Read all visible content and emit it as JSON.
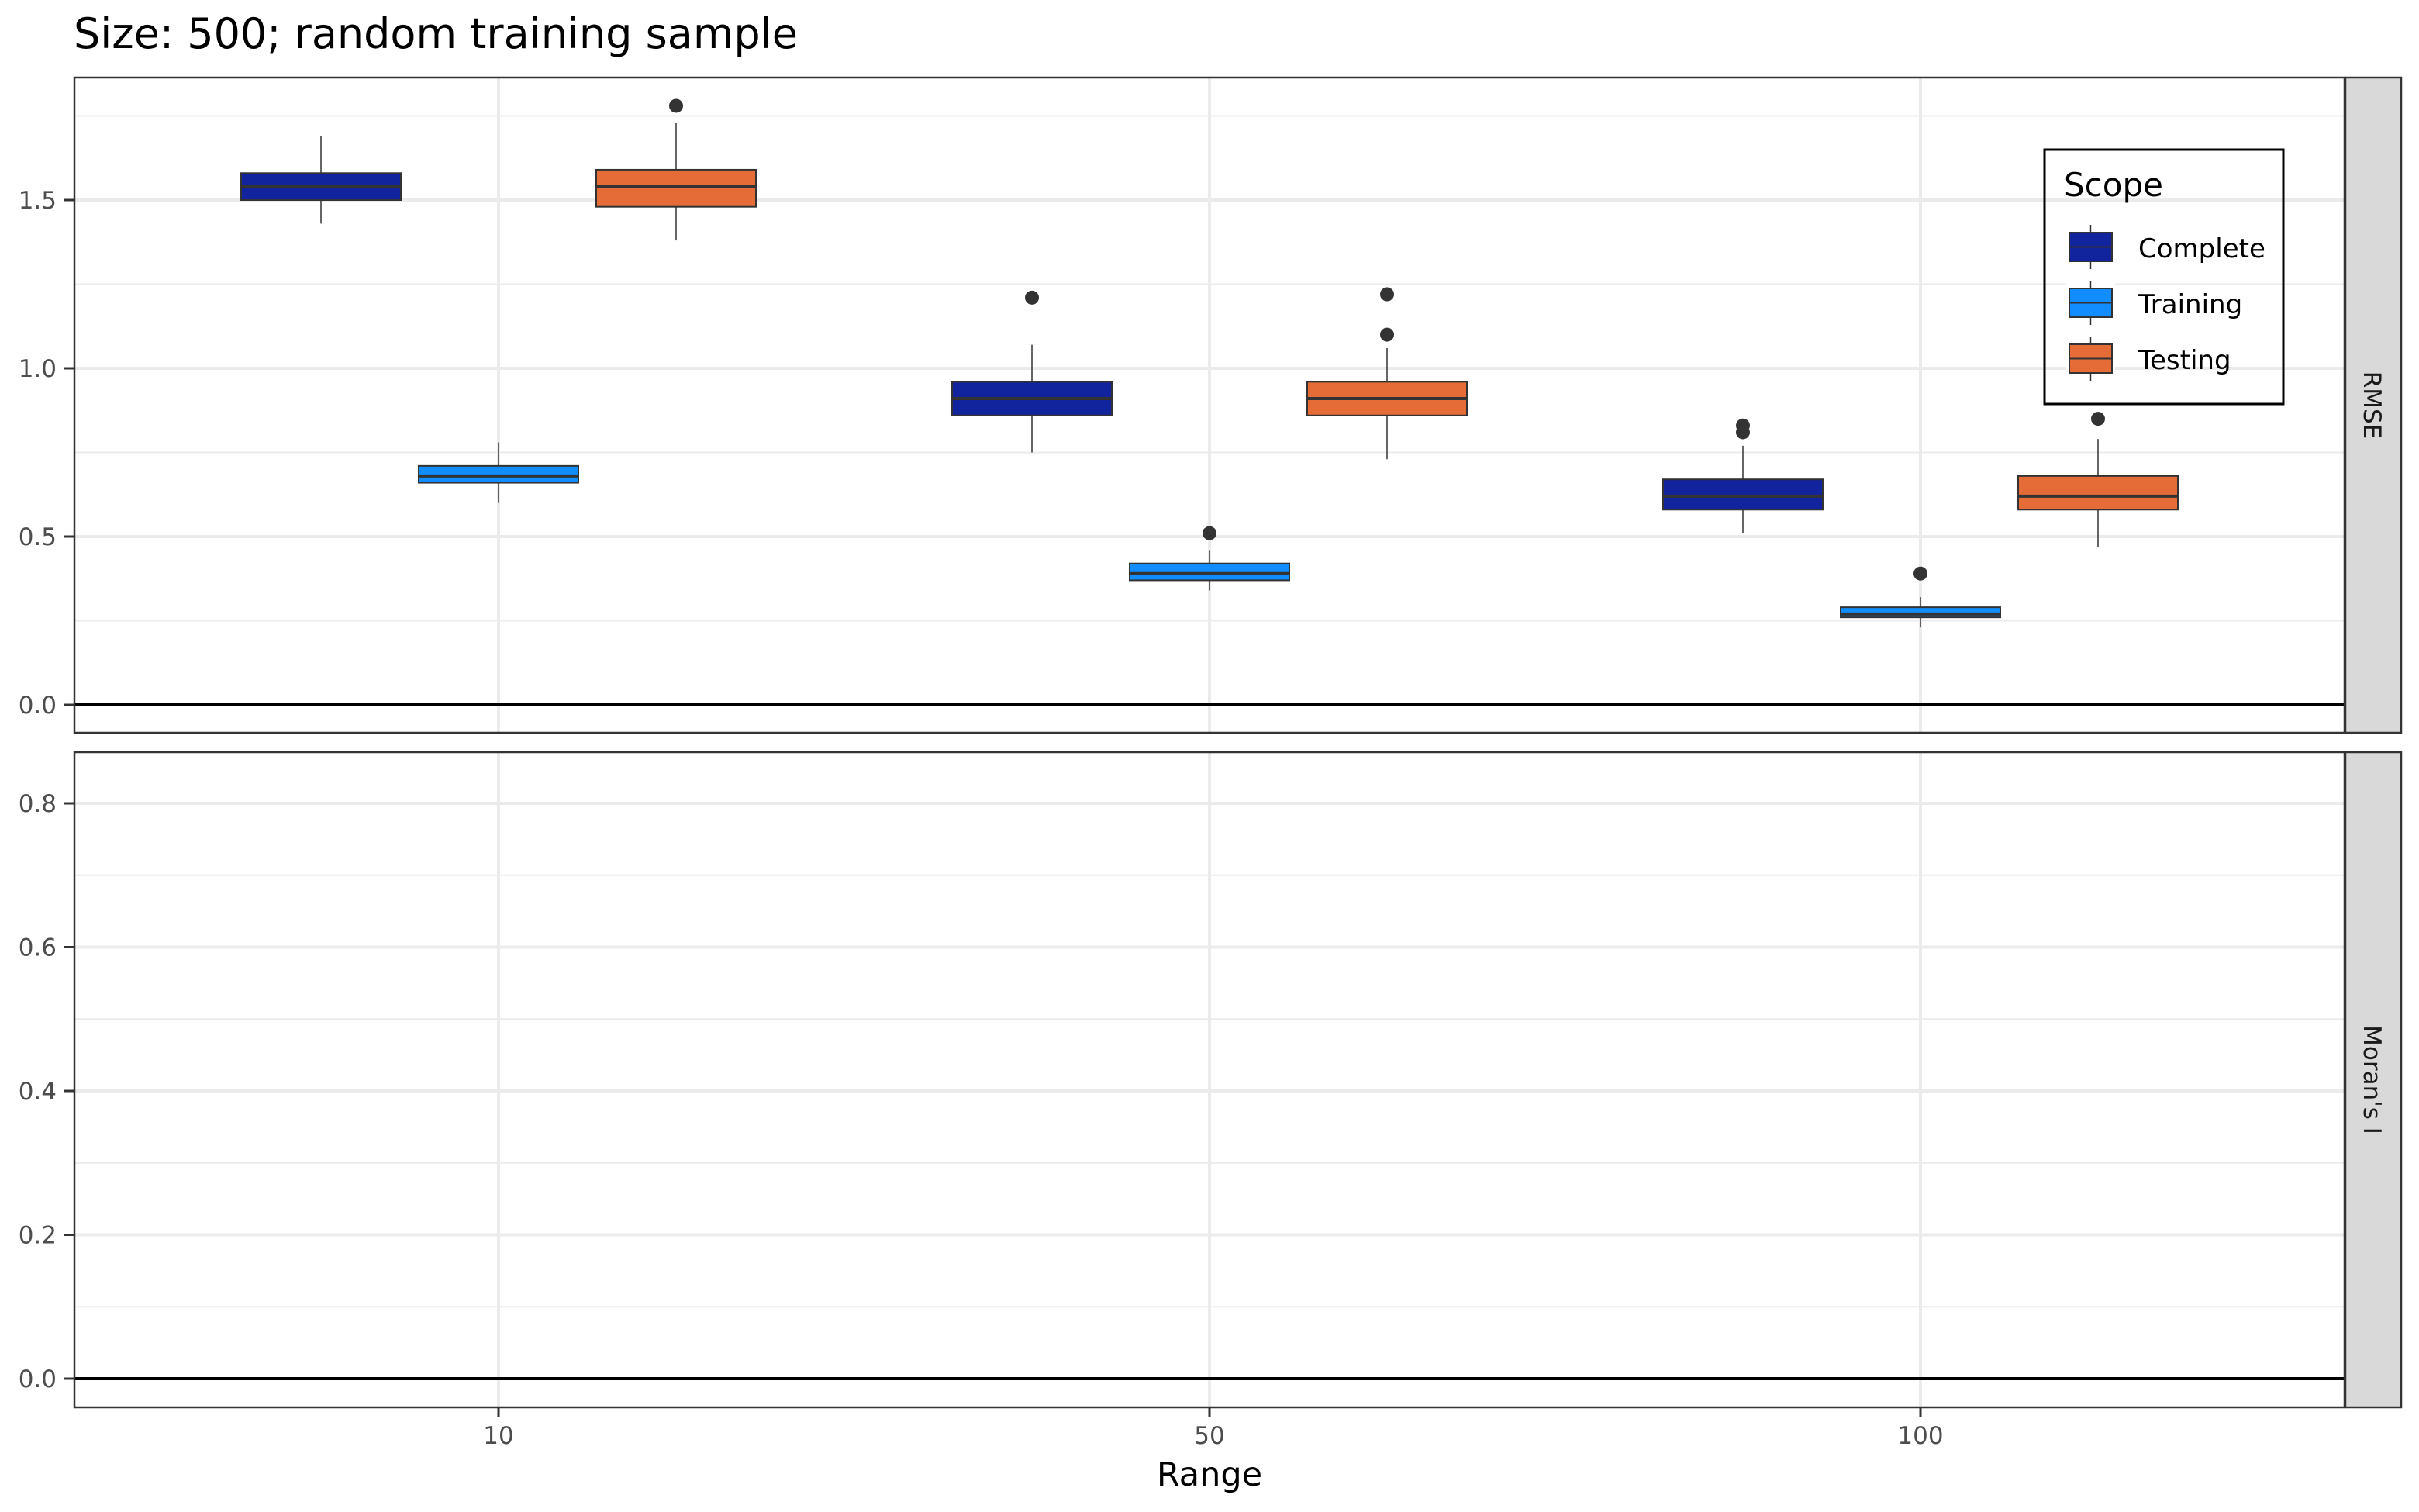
{
  "chart_data": {
    "type": "boxplot",
    "title": "Size: 500; random training sample",
    "xlabel": "Range",
    "categories": [
      "10",
      "50",
      "100"
    ],
    "legend": {
      "title": "Scope",
      "position": "top-right (inside top panel)",
      "entries": [
        {
          "name": "Complete",
          "color": "#12239e"
        },
        {
          "name": "Training",
          "color": "#118dff"
        },
        {
          "name": "Testing",
          "color": "#e66c37"
        }
      ]
    },
    "facets": [
      {
        "strip_label": "RMSE",
        "ylim": [
          -0.04,
          1.84
        ],
        "y_ticks": [
          "0.0",
          "0.5",
          "1.0",
          "1.5"
        ],
        "y_tick_values": [
          0.0,
          0.5,
          1.0,
          1.5
        ],
        "y_minor_values": [
          0.25,
          0.75,
          1.25,
          1.75
        ],
        "hline": 0.0,
        "grid": true,
        "series": [
          {
            "name": "Complete",
            "boxes": [
              {
                "category": "10",
                "whisker_low": 1.43,
                "q1": 1.5,
                "median": 1.54,
                "q3": 1.58,
                "whisker_high": 1.69,
                "outliers": []
              },
              {
                "category": "50",
                "whisker_low": 0.75,
                "q1": 0.86,
                "median": 0.91,
                "q3": 0.96,
                "whisker_high": 1.07,
                "outliers": [
                  1.21
                ]
              },
              {
                "category": "100",
                "whisker_low": 0.51,
                "q1": 0.58,
                "median": 0.62,
                "q3": 0.67,
                "whisker_high": 0.77,
                "outliers": [
                  0.81,
                  0.83
                ]
              }
            ]
          },
          {
            "name": "Training",
            "boxes": [
              {
                "category": "10",
                "whisker_low": 0.6,
                "q1": 0.66,
                "median": 0.68,
                "q3": 0.71,
                "whisker_high": 0.78,
                "outliers": []
              },
              {
                "category": "50",
                "whisker_low": 0.34,
                "q1": 0.37,
                "median": 0.39,
                "q3": 0.42,
                "whisker_high": 0.46,
                "outliers": [
                  0.51
                ]
              },
              {
                "category": "100",
                "whisker_low": 0.23,
                "q1": 0.26,
                "median": 0.27,
                "q3": 0.29,
                "whisker_high": 0.32,
                "outliers": [
                  0.39
                ]
              }
            ]
          },
          {
            "name": "Testing",
            "boxes": [
              {
                "category": "10",
                "whisker_low": 1.38,
                "q1": 1.48,
                "median": 1.54,
                "q3": 1.59,
                "whisker_high": 1.73,
                "outliers": [
                  1.78
                ]
              },
              {
                "category": "50",
                "whisker_low": 0.73,
                "q1": 0.86,
                "median": 0.91,
                "q3": 0.96,
                "whisker_high": 1.06,
                "outliers": [
                  1.1,
                  1.22
                ]
              },
              {
                "category": "100",
                "whisker_low": 0.47,
                "q1": 0.58,
                "median": 0.62,
                "q3": 0.68,
                "whisker_high": 0.79,
                "outliers": [
                  0.85
                ]
              }
            ]
          }
        ]
      },
      {
        "strip_label": "Moran's I",
        "ylim": [
          -0.04,
          0.87
        ],
        "y_ticks": [
          "0.0",
          "0.2",
          "0.4",
          "0.6",
          "0.8"
        ],
        "y_tick_values": [
          0.0,
          0.2,
          0.4,
          0.6,
          0.8
        ],
        "y_minor_values": [
          0.1,
          0.3,
          0.5,
          0.7
        ],
        "hline": 0.0,
        "grid": true,
        "series": []
      }
    ]
  }
}
